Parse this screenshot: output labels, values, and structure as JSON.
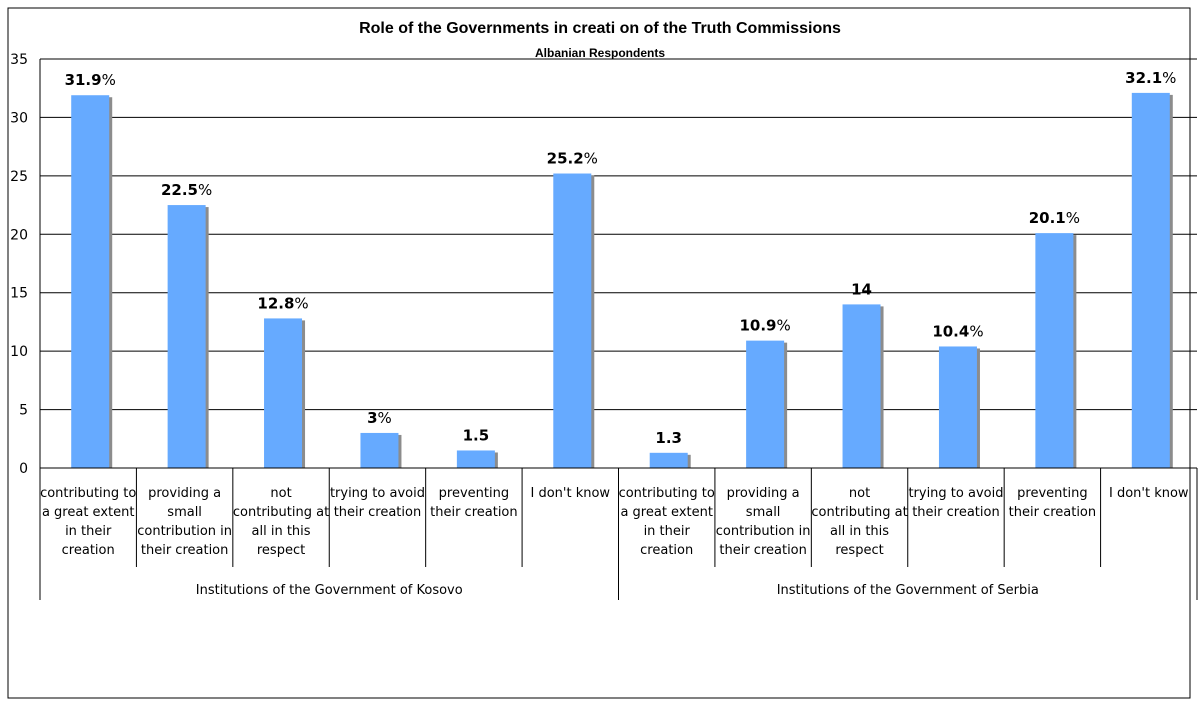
{
  "chart_data": {
    "type": "bar",
    "title": "Role of the Governments in creati on of the Truth Commissions",
    "subtitle": "Albanian Respondents",
    "ylim": [
      0,
      35
    ],
    "yticks": [
      "0",
      "5",
      "10",
      "15",
      "20",
      "25",
      "30",
      "35"
    ],
    "grid": true,
    "bar_color": "#66aaff",
    "groups": [
      {
        "label": "Institutions of the Government of Kosovo",
        "categories": [
          [
            "contributing to",
            "a great extent",
            "in their",
            "creation"
          ],
          [
            "providing a",
            "small",
            "contribution in",
            "their creation"
          ],
          [
            "not",
            "contributing at",
            "all in this",
            "respect"
          ],
          [
            "trying to avoid",
            "their creation"
          ],
          [
            "preventing",
            "their creation"
          ],
          [
            "I don't know"
          ]
        ],
        "values": [
          31.9,
          22.5,
          12.8,
          3,
          1.5,
          25.2
        ],
        "labels": [
          {
            "num": "31.9",
            "suffix": "%"
          },
          {
            "num": "22.5",
            "suffix": "%"
          },
          {
            "num": "12.8",
            "suffix": "%"
          },
          {
            "num": "3",
            "suffix": "%"
          },
          {
            "num": "1.5",
            "suffix": ""
          },
          {
            "num": "25.2",
            "suffix": "%"
          }
        ]
      },
      {
        "label": "Institutions of the Government of Serbia",
        "categories": [
          [
            "contributing to",
            "a great extent",
            "in their",
            "creation"
          ],
          [
            "providing a",
            "small",
            "contribution in",
            "their creation"
          ],
          [
            "not",
            "contributing at",
            "all in this",
            "respect"
          ],
          [
            "trying to avoid",
            "their creation"
          ],
          [
            "preventing",
            "their creation"
          ],
          [
            "I don't know"
          ]
        ],
        "values": [
          1.3,
          10.9,
          14,
          10.4,
          20.1,
          32.1
        ],
        "labels": [
          {
            "num": "1.3",
            "suffix": ""
          },
          {
            "num": "10.9",
            "suffix": "%"
          },
          {
            "num": "14",
            "suffix": ""
          },
          {
            "num": "10.4",
            "suffix": "%"
          },
          {
            "num": "20.1",
            "suffix": "%"
          },
          {
            "num": "32.1",
            "suffix": "%"
          }
        ]
      }
    ]
  }
}
